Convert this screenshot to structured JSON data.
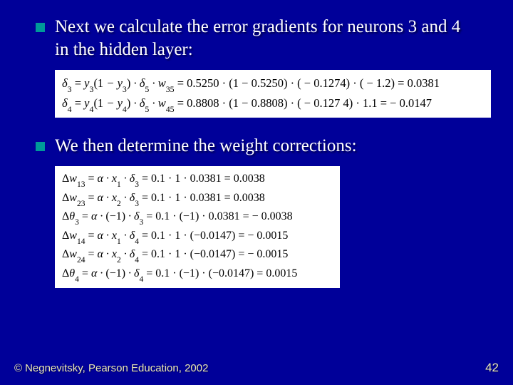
{
  "colors": {
    "background": "#000099",
    "bullet": "#009999",
    "text": "#ffffff",
    "eq_bg": "#ffffff",
    "eq_text": "#000000",
    "footer_text": "#e9e6b8"
  },
  "typography": {
    "body_font": "Times New Roman",
    "body_size_pt": 19,
    "eq_size_pt": 12,
    "footer_font": "Arial",
    "footer_size_pt": 11
  },
  "bullets": [
    {
      "text": "Next we calculate the error gradients for neurons 3 and 4 in the hidden layer:"
    },
    {
      "text": "We then determine the weight corrections:"
    }
  ],
  "eq_block_1": {
    "lines": [
      {
        "lhs_symbol": "δ",
        "lhs_sub": "3",
        "rhs": "y₃(1 − y₃) · δ₅ · w₃₅ = 0.5250 · (1 − 0.5250) · ( − 0.1274) · ( − 1.2) = 0.0381"
      },
      {
        "lhs_symbol": "δ",
        "lhs_sub": "4",
        "rhs": "y₄(1 − y₄) · δ₅ · w₄₅ = 0.8808 · (1 − 0.8808) · ( − 0.127 4) · 1.1 = − 0.0147"
      }
    ]
  },
  "eq_block_2": {
    "lines": [
      {
        "lhs_symbol": "Δw",
        "lhs_sub": "13",
        "rhs": "α · x₁ · δ₃ = 0.1 · 1 · 0.0381 = 0.0038"
      },
      {
        "lhs_symbol": "Δw",
        "lhs_sub": "23",
        "rhs": "α · x₂ · δ₃ = 0.1 · 1 · 0.0381 = 0.0038"
      },
      {
        "lhs_symbol": "Δθ",
        "lhs_sub": "3",
        "rhs": "α · (−1) · δ₃ = 0.1 · (−1) · 0.0381 = − 0.0038"
      },
      {
        "lhs_symbol": "Δw",
        "lhs_sub": "14",
        "rhs": "α · x₁ · δ₄ = 0.1 · 1 · (−0.0147) = − 0.0015"
      },
      {
        "lhs_symbol": "Δw",
        "lhs_sub": "24",
        "rhs": "α · x₂ · δ₄ = 0.1 · 1 · (−0.0147) = − 0.0015"
      },
      {
        "lhs_symbol": "Δθ",
        "lhs_sub": "4",
        "rhs": "α · (−1) · δ₄ = 0.1 · (−1) · (−0.0147) = 0.0015"
      }
    ]
  },
  "footer": {
    "copyright_icon": "©",
    "attribution": "Negnevitsky, Pearson Education, 2002",
    "page_number": "42"
  }
}
